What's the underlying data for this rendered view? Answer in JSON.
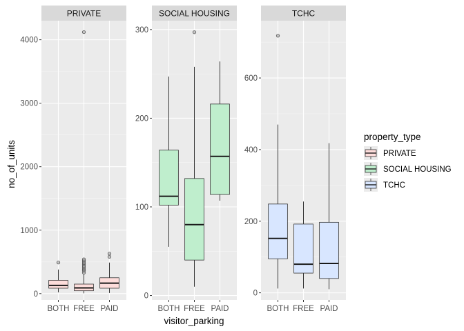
{
  "chart_data": {
    "type": "boxplot",
    "title": "",
    "xlabel": "visitor_parking",
    "ylabel": "no_of_units",
    "categories": [
      "BOTH",
      "FREE",
      "PAID"
    ],
    "legend": {
      "title": "property_type",
      "position": "right",
      "entries": [
        "PRIVATE",
        "SOCIAL HOUSING",
        "TCHC"
      ]
    },
    "facets": [
      {
        "name": "PRIVATE",
        "ylim": [
          -100,
          4300
        ],
        "yticks": [
          0,
          1000,
          2000,
          3000,
          4000
        ],
        "color": "#F8766D",
        "boxes": [
          {
            "category": "BOTH",
            "whisker_low": 20,
            "q1": 85,
            "median": 130,
            "q3": 210,
            "whisker_high": 380,
            "outliers": [
              490
            ]
          },
          {
            "category": "FREE",
            "whisker_low": 5,
            "q1": 45,
            "median": 90,
            "q3": 150,
            "whisker_high": 300,
            "outliers": [
              330,
              360,
              380,
              400,
              420,
              440,
              460,
              480,
              500,
              520,
              540,
              4120
            ]
          },
          {
            "category": "PAID",
            "whisker_low": 10,
            "q1": 85,
            "median": 165,
            "q3": 250,
            "whisker_high": 490,
            "outliers": [
              580,
              630
            ]
          }
        ]
      },
      {
        "name": "SOCIAL HOUSING",
        "ylim": [
          -5,
          310
        ],
        "yticks": [
          0,
          100,
          200,
          300
        ],
        "color": "#00BA38",
        "boxes": [
          {
            "category": "BOTH",
            "whisker_low": 55,
            "q1": 102,
            "median": 112,
            "q3": 164,
            "whisker_high": 247,
            "outliers": []
          },
          {
            "category": "FREE",
            "whisker_low": 10,
            "q1": 40,
            "median": 80,
            "q3": 132,
            "whisker_high": 258,
            "outliers": [
              297
            ]
          },
          {
            "category": "PAID",
            "whisker_low": 107,
            "q1": 114,
            "median": 157,
            "q3": 216,
            "whisker_high": 264,
            "outliers": []
          }
        ]
      },
      {
        "name": "TCHC",
        "ylim": [
          -20,
          760
        ],
        "yticks": [
          0,
          200,
          400,
          600
        ],
        "color": "#619CFF",
        "boxes": [
          {
            "category": "BOTH",
            "whisker_low": 12,
            "q1": 95,
            "median": 152,
            "q3": 248,
            "whisker_high": 470,
            "outliers": [
              718
            ]
          },
          {
            "category": "FREE",
            "whisker_low": 12,
            "q1": 55,
            "median": 80,
            "q3": 192,
            "whisker_high": 255,
            "outliers": []
          },
          {
            "category": "PAID",
            "whisker_low": 10,
            "q1": 40,
            "median": 82,
            "q3": 197,
            "whisker_high": 418,
            "outliers": []
          }
        ]
      }
    ],
    "grid": true,
    "box_alpha": 0.25
  }
}
